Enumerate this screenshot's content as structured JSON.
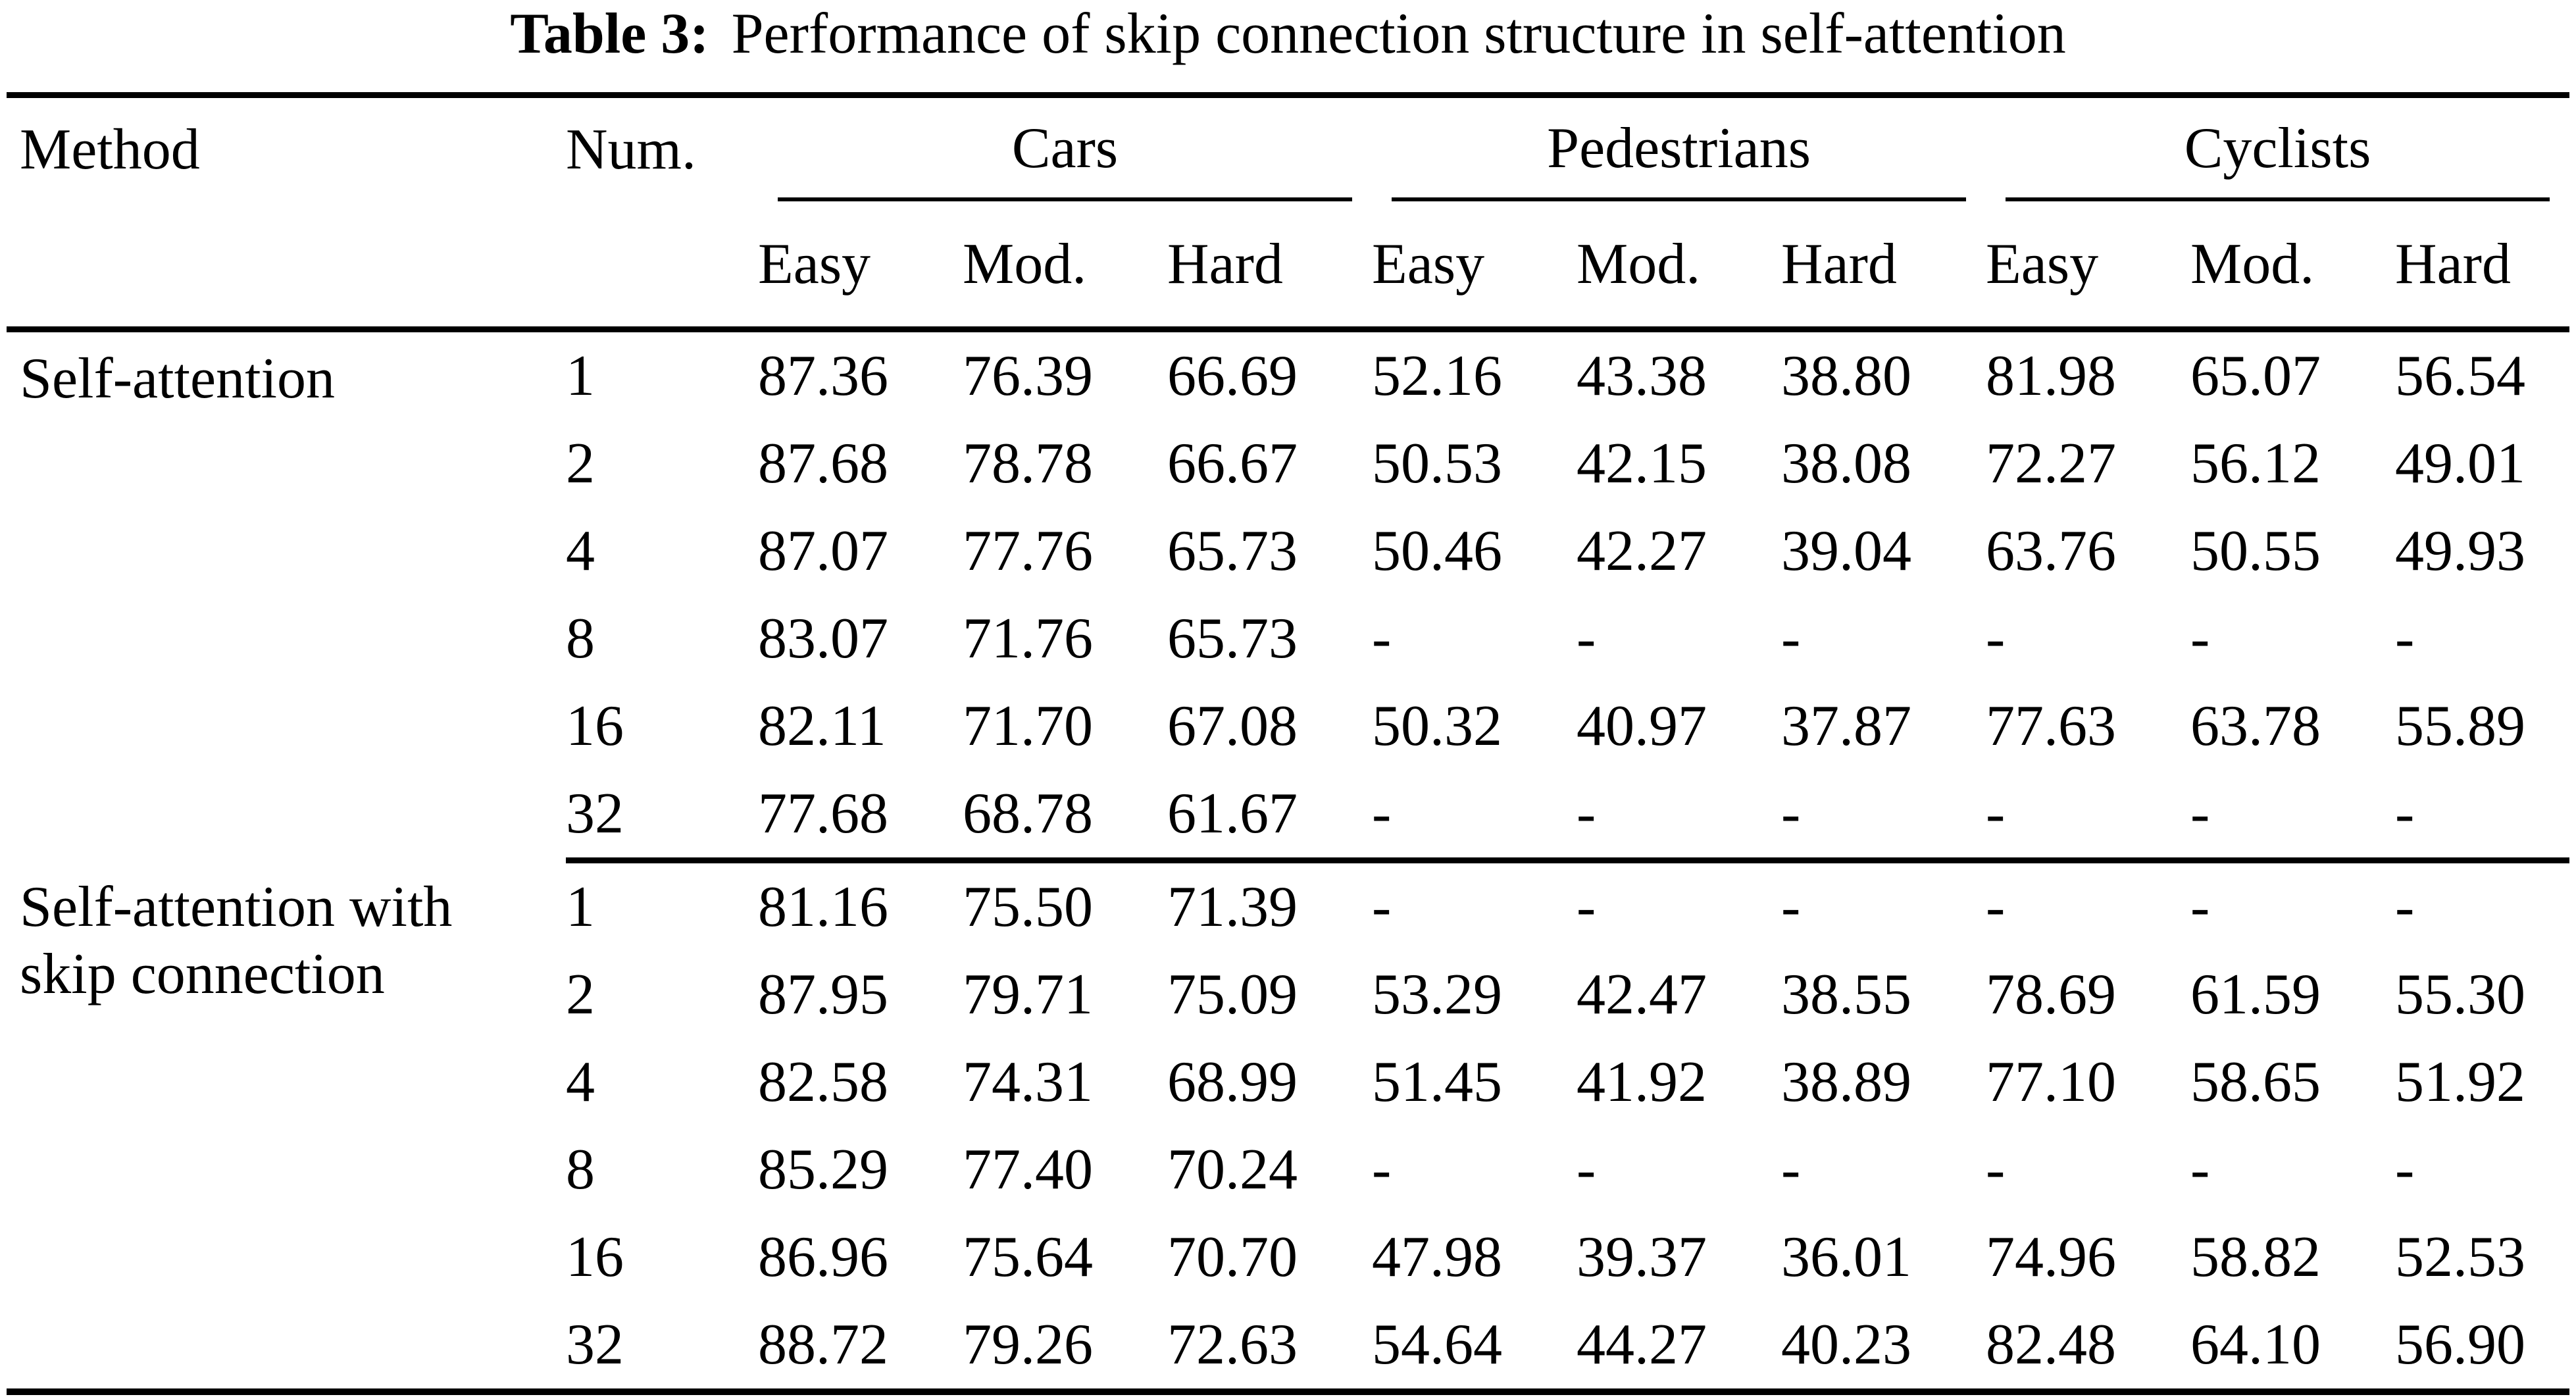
{
  "caption": {
    "label": "Table 3:",
    "text": "Performance of skip connection structure in self-attention"
  },
  "colors": {
    "text": "#000000",
    "background": "#ffffff",
    "rule": "#000000"
  },
  "headers": {
    "method": "Method",
    "num": "Num.",
    "groups": [
      "Cars",
      "Pedestrians",
      "Cyclists"
    ],
    "sub": [
      "Easy",
      "Mod.",
      "Hard"
    ]
  },
  "sections": [
    {
      "name": "Self-attention",
      "method_lines": [
        "Self-attention"
      ],
      "rows": [
        {
          "num": "1",
          "values": [
            "87.36",
            "76.39",
            "66.69",
            "52.16",
            "43.38",
            "38.80",
            "81.98",
            "65.07",
            "56.54"
          ]
        },
        {
          "num": "2",
          "values": [
            "87.68",
            "78.78",
            "66.67",
            "50.53",
            "42.15",
            "38.08",
            "72.27",
            "56.12",
            "49.01"
          ]
        },
        {
          "num": "4",
          "values": [
            "87.07",
            "77.76",
            "65.73",
            "50.46",
            "42.27",
            "39.04",
            "63.76",
            "50.55",
            "49.93"
          ]
        },
        {
          "num": "8",
          "values": [
            "83.07",
            "71.76",
            "65.73",
            "-",
            "-",
            "-",
            "-",
            "-",
            "-"
          ]
        },
        {
          "num": "16",
          "values": [
            "82.11",
            "71.70",
            "67.08",
            "50.32",
            "40.97",
            "37.87",
            "77.63",
            "63.78",
            "55.89"
          ]
        },
        {
          "num": "32",
          "values": [
            "77.68",
            "68.78",
            "61.67",
            "-",
            "-",
            "-",
            "-",
            "-",
            "-"
          ]
        }
      ]
    },
    {
      "name": "Self-attention with skip connection",
      "method_lines": [
        "Self-attention with",
        "skip connection"
      ],
      "rows": [
        {
          "num": "1",
          "values": [
            "81.16",
            "75.50",
            "71.39",
            "-",
            "-",
            "-",
            "-",
            "-",
            "-"
          ]
        },
        {
          "num": "2",
          "values": [
            "87.95",
            "79.71",
            "75.09",
            "53.29",
            "42.47",
            "38.55",
            "78.69",
            "61.59",
            "55.30"
          ]
        },
        {
          "num": "4",
          "values": [
            "82.58",
            "74.31",
            "68.99",
            "51.45",
            "41.92",
            "38.89",
            "77.10",
            "58.65",
            "51.92"
          ]
        },
        {
          "num": "8",
          "values": [
            "85.29",
            "77.40",
            "70.24",
            "-",
            "-",
            "-",
            "-",
            "-",
            "-"
          ]
        },
        {
          "num": "16",
          "values": [
            "86.96",
            "75.64",
            "70.70",
            "47.98",
            "39.37",
            "36.01",
            "74.96",
            "58.82",
            "52.53"
          ]
        },
        {
          "num": "32",
          "values": [
            "88.72",
            "79.26",
            "72.63",
            "54.64",
            "44.27",
            "40.23",
            "82.48",
            "64.10",
            "56.90"
          ]
        }
      ]
    }
  ]
}
